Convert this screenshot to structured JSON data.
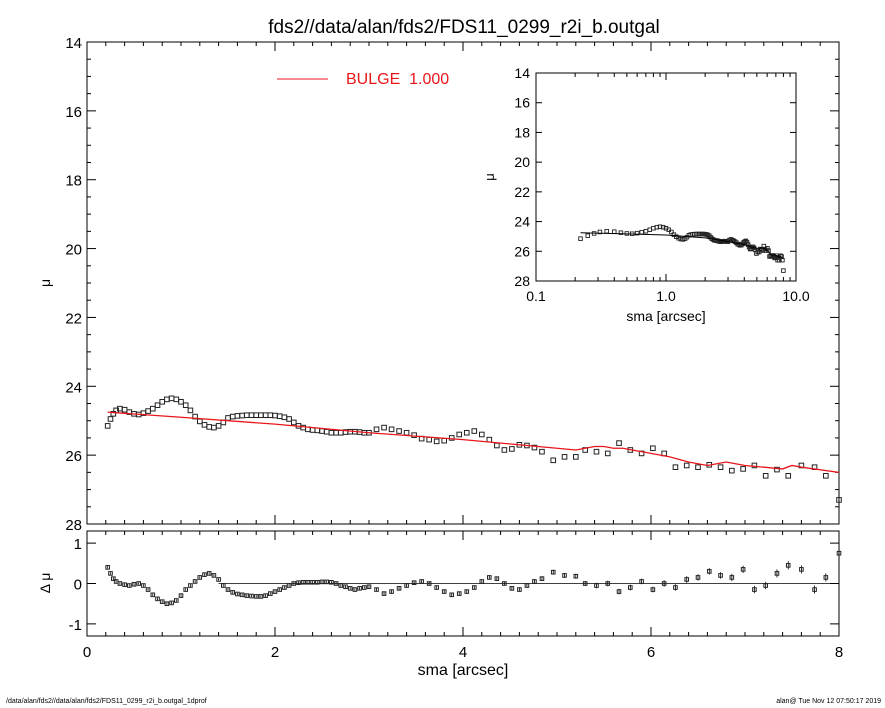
{
  "title": "fds2//data/alan/fds2/FDS11_0299_r2i_b.outgal",
  "footer": {
    "left": "/data/alan/fds2//data/alan/fds2/FDS11_0299_r2i_b.outgal_1dprof",
    "right": "alan@  Tue Nov 12 07:50:17 2019"
  },
  "colors": {
    "model": "#e8161b",
    "axis": "#000000",
    "points": "#222222"
  },
  "chart_data": [
    {
      "type": "scatter",
      "panel": "main",
      "ylabel": "μ",
      "ylim": [
        28,
        14
      ],
      "xlim": [
        0,
        8
      ],
      "yticks": [
        14,
        16,
        18,
        20,
        22,
        24,
        26,
        28
      ],
      "ytick_labels": [
        "14",
        "16",
        "18",
        "20",
        "22",
        "24",
        "26",
        "28"
      ],
      "legend": {
        "label": "BULGE  1.000",
        "color": "#e8161b",
        "placement": "top-center"
      },
      "series": [
        {
          "kind": "points",
          "x": [
            0.22,
            0.25,
            0.28,
            0.31,
            0.35,
            0.4,
            0.45,
            0.5,
            0.55,
            0.6,
            0.65,
            0.7,
            0.75,
            0.8,
            0.85,
            0.9,
            0.95,
            1.0,
            1.05,
            1.1,
            1.15,
            1.2,
            1.25,
            1.3,
            1.35,
            1.4,
            1.45,
            1.5,
            1.55,
            1.6,
            1.65,
            1.7,
            1.75,
            1.8,
            1.85,
            1.9,
            1.95,
            2.0,
            2.05,
            2.1,
            2.15,
            2.2,
            2.25,
            2.3,
            2.35,
            2.4,
            2.45,
            2.5,
            2.55,
            2.6,
            2.65,
            2.7,
            2.75,
            2.8,
            2.85,
            2.9,
            2.95,
            3.0,
            3.08,
            3.16,
            3.24,
            3.32,
            3.4,
            3.48,
            3.56,
            3.64,
            3.72,
            3.8,
            3.88,
            3.96,
            4.04,
            4.12,
            4.2,
            4.28,
            4.36,
            4.44,
            4.52,
            4.6,
            4.68,
            4.76,
            4.84,
            4.96,
            5.08,
            5.2,
            5.3,
            5.42,
            5.54,
            5.66,
            5.78,
            5.9,
            6.02,
            6.14,
            6.26,
            6.38,
            6.5,
            6.62,
            6.74,
            6.86,
            6.98,
            7.1,
            7.22,
            7.34,
            7.46,
            7.6,
            7.74,
            7.86,
            8.0
          ],
          "y": [
            25.15,
            24.95,
            24.8,
            24.7,
            24.65,
            24.68,
            24.75,
            24.8,
            24.82,
            24.78,
            24.72,
            24.65,
            24.55,
            24.45,
            24.38,
            24.35,
            24.38,
            24.45,
            24.55,
            24.7,
            24.88,
            25.02,
            25.12,
            25.18,
            25.2,
            25.15,
            25.05,
            24.92,
            24.88,
            24.86,
            24.85,
            24.84,
            24.84,
            24.84,
            24.84,
            24.84,
            24.84,
            24.85,
            24.87,
            24.9,
            24.95,
            25.05,
            25.15,
            25.2,
            25.25,
            25.27,
            25.28,
            25.3,
            25.32,
            25.35,
            25.35,
            25.35,
            25.33,
            25.32,
            25.32,
            25.33,
            25.35,
            25.35,
            25.25,
            25.2,
            25.25,
            25.3,
            25.35,
            25.42,
            25.52,
            25.55,
            25.6,
            25.58,
            25.5,
            25.4,
            25.35,
            25.3,
            25.4,
            25.55,
            25.72,
            25.85,
            25.82,
            25.7,
            25.72,
            25.78,
            25.9,
            26.15,
            26.05,
            26.05,
            25.85,
            25.9,
            25.95,
            25.65,
            25.85,
            25.95,
            25.8,
            25.95,
            26.35,
            26.3,
            26.35,
            26.28,
            26.35,
            26.45,
            26.4,
            26.3,
            26.6,
            26.42,
            26.6,
            26.3,
            26.35,
            26.6,
            27.3
          ]
        },
        {
          "kind": "model-line",
          "name": "BULGE  1.000",
          "x": [
            0.22,
            1.0,
            2.0,
            3.0,
            4.0,
            5.0,
            5.2,
            5.4,
            5.5,
            5.6,
            5.7,
            5.8,
            6.0,
            6.2,
            6.4,
            6.6,
            6.8,
            7.0,
            7.2,
            7.4,
            7.5,
            7.6,
            8.0
          ],
          "y": [
            24.75,
            24.9,
            25.1,
            25.35,
            25.55,
            25.8,
            25.85,
            25.75,
            25.75,
            25.8,
            25.8,
            25.85,
            25.95,
            26.05,
            26.2,
            26.3,
            26.2,
            26.3,
            26.35,
            26.4,
            26.3,
            26.35,
            26.5
          ]
        }
      ]
    },
    {
      "type": "scatter",
      "panel": "residual",
      "ylabel": "Δ μ",
      "xlabel": "sma [arcsec]",
      "xlim": [
        0,
        8
      ],
      "ylim": [
        -1.3,
        1.3
      ],
      "xticks": [
        0,
        2,
        4,
        6,
        8
      ],
      "xtick_labels": [
        "0",
        "2",
        "4",
        "6",
        "8"
      ],
      "yticks": [
        -1,
        0,
        1
      ],
      "ytick_labels": [
        "-1",
        "0",
        "1"
      ],
      "zero_line": true,
      "series": [
        {
          "kind": "points-with-errorbars",
          "x": [
            0.22,
            0.25,
            0.28,
            0.31,
            0.35,
            0.4,
            0.45,
            0.5,
            0.55,
            0.6,
            0.65,
            0.7,
            0.75,
            0.8,
            0.85,
            0.9,
            0.95,
            1.0,
            1.05,
            1.1,
            1.15,
            1.2,
            1.25,
            1.3,
            1.35,
            1.4,
            1.45,
            1.5,
            1.55,
            1.6,
            1.65,
            1.7,
            1.75,
            1.8,
            1.85,
            1.9,
            1.95,
            2.0,
            2.05,
            2.1,
            2.15,
            2.2,
            2.25,
            2.3,
            2.35,
            2.4,
            2.45,
            2.5,
            2.55,
            2.6,
            2.65,
            2.7,
            2.75,
            2.8,
            2.85,
            2.9,
            2.95,
            3.0,
            3.08,
            3.16,
            3.24,
            3.32,
            3.4,
            3.48,
            3.56,
            3.64,
            3.72,
            3.8,
            3.88,
            3.96,
            4.04,
            4.12,
            4.2,
            4.28,
            4.36,
            4.44,
            4.52,
            4.6,
            4.68,
            4.76,
            4.84,
            4.96,
            5.08,
            5.2,
            5.3,
            5.42,
            5.54,
            5.66,
            5.78,
            5.9,
            6.02,
            6.14,
            6.26,
            6.38,
            6.5,
            6.62,
            6.74,
            6.86,
            6.98,
            7.1,
            7.22,
            7.34,
            7.46,
            7.6,
            7.74,
            7.86,
            8.0
          ],
          "y": [
            0.4,
            0.25,
            0.12,
            0.05,
            0.0,
            -0.03,
            -0.05,
            -0.02,
            0.0,
            -0.05,
            -0.15,
            -0.28,
            -0.38,
            -0.45,
            -0.5,
            -0.48,
            -0.42,
            -0.3,
            -0.15,
            -0.05,
            0.05,
            0.15,
            0.22,
            0.25,
            0.2,
            0.1,
            -0.05,
            -0.15,
            -0.22,
            -0.26,
            -0.28,
            -0.3,
            -0.31,
            -0.32,
            -0.32,
            -0.3,
            -0.25,
            -0.2,
            -0.15,
            -0.1,
            -0.05,
            0.0,
            0.02,
            0.03,
            0.03,
            0.03,
            0.03,
            0.04,
            0.04,
            0.03,
            0.0,
            -0.05,
            -0.08,
            -0.12,
            -0.15,
            -0.12,
            -0.1,
            -0.08,
            -0.15,
            -0.25,
            -0.2,
            -0.12,
            -0.05,
            0.02,
            0.05,
            0.0,
            -0.1,
            -0.2,
            -0.28,
            -0.25,
            -0.2,
            -0.1,
            0.05,
            0.15,
            0.12,
            0.0,
            -0.12,
            -0.15,
            -0.05,
            0.05,
            0.12,
            0.28,
            0.2,
            0.18,
            0.0,
            -0.05,
            0.0,
            -0.2,
            -0.1,
            0.05,
            -0.15,
            0.0,
            -0.1,
            0.1,
            0.15,
            0.3,
            0.2,
            0.15,
            0.35,
            -0.15,
            -0.05,
            0.25,
            0.45,
            0.35,
            -0.15,
            0.15,
            0.75
          ],
          "err": [
            0.03,
            0.03,
            0.03,
            0.03,
            0.03,
            0.03,
            0.03,
            0.03,
            0.03,
            0.03,
            0.03,
            0.03,
            0.03,
            0.03,
            0.03,
            0.03,
            0.03,
            0.03,
            0.03,
            0.03,
            0.03,
            0.03,
            0.03,
            0.03,
            0.03,
            0.03,
            0.03,
            0.03,
            0.03,
            0.03,
            0.03,
            0.03,
            0.03,
            0.03,
            0.03,
            0.03,
            0.03,
            0.03,
            0.03,
            0.03,
            0.03,
            0.03,
            0.03,
            0.03,
            0.03,
            0.03,
            0.03,
            0.03,
            0.03,
            0.03,
            0.03,
            0.03,
            0.03,
            0.03,
            0.03,
            0.03,
            0.03,
            0.03,
            0.04,
            0.04,
            0.04,
            0.04,
            0.04,
            0.04,
            0.04,
            0.04,
            0.04,
            0.04,
            0.04,
            0.04,
            0.05,
            0.05,
            0.05,
            0.05,
            0.05,
            0.05,
            0.05,
            0.05,
            0.05,
            0.06,
            0.06,
            0.06,
            0.06,
            0.06,
            0.06,
            0.07,
            0.07,
            0.07,
            0.07,
            0.07,
            0.07,
            0.08,
            0.08,
            0.08,
            0.08,
            0.08,
            0.08,
            0.09,
            0.09,
            0.09,
            0.09,
            0.1,
            0.1,
            0.1,
            0.1,
            0.1,
            0.12
          ]
        }
      ]
    },
    {
      "type": "scatter",
      "panel": "inset",
      "ylabel": "μ",
      "xlabel": "sma [arcsec]",
      "xscale": "log",
      "xlim": [
        0.1,
        10.0
      ],
      "xticks": [
        0.1,
        1.0,
        10.0
      ],
      "xtick_labels": [
        "0.1",
        "1.0",
        "10.0"
      ],
      "ylim": [
        28,
        14
      ],
      "yticks": [
        14,
        16,
        18,
        20,
        22,
        24,
        26,
        28
      ],
      "ytick_labels": [
        "14",
        "16",
        "18",
        "20",
        "22",
        "24",
        "26",
        "28"
      ],
      "series": [
        {
          "kind": "points",
          "ref": "main.points"
        },
        {
          "kind": "model-line",
          "color": "#000000",
          "ref": "main.model"
        }
      ]
    }
  ]
}
